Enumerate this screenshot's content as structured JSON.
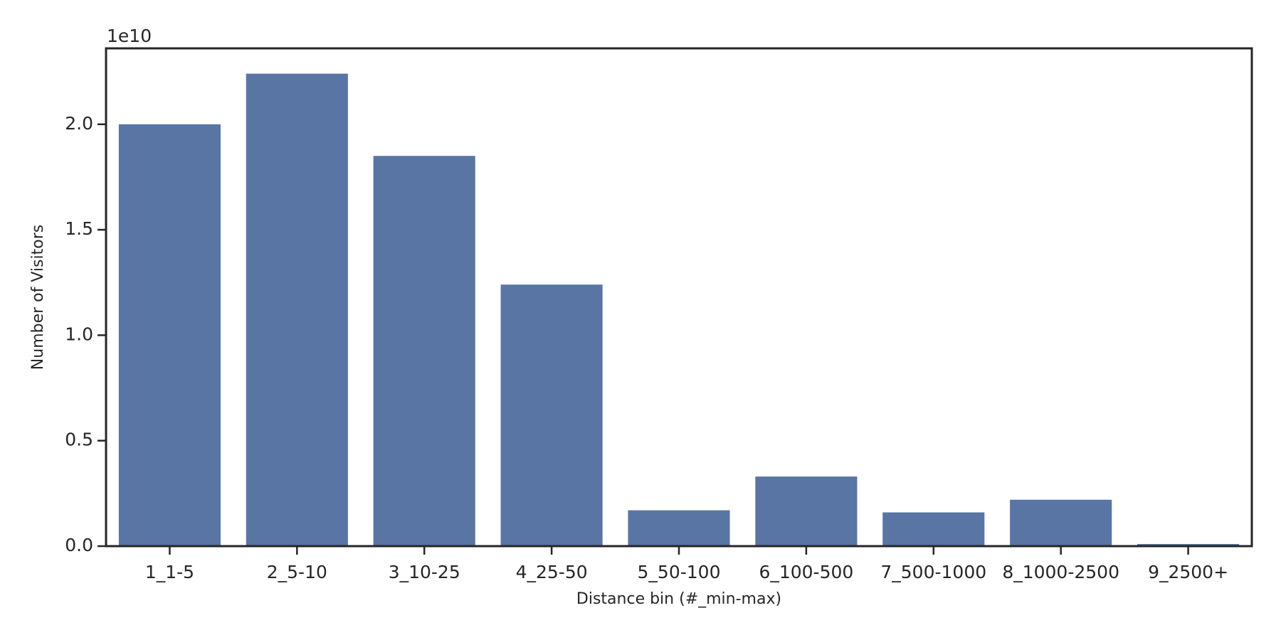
{
  "chart_data": {
    "type": "bar",
    "y_offset_label": "1e10",
    "xlabel": "Distance bin (#_min-max)",
    "ylabel": "Number of Visitors",
    "categories": [
      "1_1-5",
      "2_5-10",
      "3_10-25",
      "4_25-50",
      "5_50-100",
      "6_100-500",
      "7_500-1000",
      "8_1000-2500",
      "9_2500+"
    ],
    "values": [
      2.0,
      2.24,
      1.85,
      1.24,
      0.17,
      0.33,
      0.16,
      0.22,
      0.01
    ],
    "color": "#5975a4",
    "ylim": [
      0,
      2.36
    ],
    "yticks": [
      {
        "value": 0,
        "label": "0.0"
      },
      0.5,
      {
        "value": 1,
        "label": "1.0"
      },
      1.5,
      {
        "value": 2,
        "label": "2.0"
      }
    ],
    "grid": false
  }
}
